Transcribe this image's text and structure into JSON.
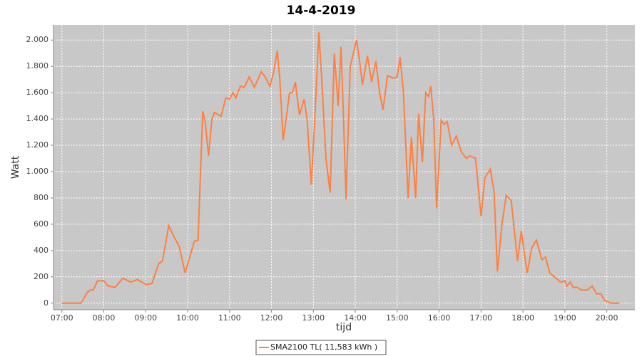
{
  "chart_data": {
    "type": "line",
    "title": "14-4-2019",
    "xlabel": "tijd",
    "ylabel": "Watt",
    "x": [
      7.0,
      7.46,
      7.6,
      7.68,
      7.75,
      7.85,
      8.0,
      8.1,
      8.27,
      8.45,
      8.65,
      8.8,
      9.02,
      9.15,
      9.31,
      9.4,
      9.55,
      9.65,
      9.8,
      9.94,
      10.05,
      10.16,
      10.25,
      10.36,
      10.42,
      10.5,
      10.58,
      10.64,
      10.8,
      10.91,
      11.0,
      11.08,
      11.15,
      11.26,
      11.35,
      11.47,
      11.59,
      11.76,
      11.85,
      11.96,
      12.05,
      12.14,
      12.2,
      12.28,
      12.35,
      12.43,
      12.5,
      12.57,
      12.67,
      12.78,
      12.85,
      12.95,
      13.05,
      13.13,
      13.2,
      13.3,
      13.4,
      13.5,
      13.59,
      13.66,
      13.72,
      13.78,
      13.88,
      14.03,
      14.1,
      14.17,
      14.29,
      14.39,
      14.49,
      14.58,
      14.66,
      14.77,
      14.9,
      15.0,
      15.07,
      15.15,
      15.26,
      15.34,
      15.44,
      15.51,
      15.6,
      15.68,
      15.75,
      15.8,
      15.87,
      15.94,
      16.05,
      16.12,
      16.19,
      16.3,
      16.41,
      16.53,
      16.65,
      16.73,
      16.87,
      17.0,
      17.09,
      17.22,
      17.31,
      17.39,
      17.5,
      17.6,
      17.72,
      17.87,
      17.96,
      18.1,
      18.21,
      18.32,
      18.45,
      18.54,
      18.64,
      18.79,
      18.9,
      19.0,
      19.05,
      19.13,
      19.2,
      19.3,
      19.39,
      19.54,
      19.65,
      19.76,
      19.86,
      19.95,
      20.1,
      20.3
    ],
    "series": [
      {
        "name": "SMA2100 TL( 11,583 kWh )",
        "color": "#ff8040",
        "values": [
          0,
          0,
          80,
          100,
          100,
          170,
          170,
          130,
          120,
          190,
          160,
          180,
          140,
          150,
          300,
          320,
          590,
          520,
          430,
          230,
          350,
          470,
          480,
          1460,
          1380,
          1120,
          1400,
          1450,
          1420,
          1560,
          1550,
          1600,
          1560,
          1650,
          1640,
          1720,
          1640,
          1760,
          1720,
          1650,
          1750,
          1920,
          1700,
          1240,
          1400,
          1600,
          1600,
          1680,
          1430,
          1550,
          1400,
          900,
          1500,
          2060,
          1700,
          1100,
          840,
          1900,
          1500,
          1950,
          1400,
          790,
          1800,
          2000,
          1850,
          1660,
          1880,
          1680,
          1840,
          1600,
          1470,
          1730,
          1710,
          1720,
          1870,
          1600,
          800,
          1260,
          800,
          1440,
          1070,
          1600,
          1570,
          1650,
          1400,
          720,
          1390,
          1360,
          1380,
          1200,
          1270,
          1150,
          1100,
          1120,
          1100,
          660,
          950,
          1020,
          850,
          240,
          600,
          820,
          780,
          320,
          550,
          230,
          420,
          480,
          330,
          350,
          230,
          190,
          160,
          170,
          130,
          160,
          120,
          120,
          100,
          100,
          130,
          70,
          70,
          20,
          0,
          0
        ]
      }
    ],
    "xlim": [
      6.8,
      20.67
    ],
    "ylim": [
      -50,
      2115
    ],
    "xticks": [
      {
        "value": 7,
        "label": "07:00"
      },
      {
        "value": 8,
        "label": "08:00"
      },
      {
        "value": 9,
        "label": "09:00"
      },
      {
        "value": 10,
        "label": "10:00"
      },
      {
        "value": 11,
        "label": "11:00"
      },
      {
        "value": 12,
        "label": "12:00"
      },
      {
        "value": 13,
        "label": "13:00"
      },
      {
        "value": 14,
        "label": "14:00"
      },
      {
        "value": 15,
        "label": "15:00"
      },
      {
        "value": 16,
        "label": "16:00"
      },
      {
        "value": 17,
        "label": "17:00"
      },
      {
        "value": 18,
        "label": "18:00"
      },
      {
        "value": 19,
        "label": "19:00"
      },
      {
        "value": 20,
        "label": "20:00"
      }
    ],
    "yticks": [
      0,
      200,
      400,
      600,
      800,
      {
        "value": 1000,
        "label": "1.000"
      },
      {
        "value": 1200,
        "label": "1.200"
      },
      {
        "value": 1400,
        "label": "1.400"
      },
      {
        "value": 1600,
        "label": "1.600"
      },
      {
        "value": 1800,
        "label": "1.800"
      },
      {
        "value": 2000,
        "label": "2.000"
      }
    ],
    "grid": true,
    "legend": "bottom"
  }
}
